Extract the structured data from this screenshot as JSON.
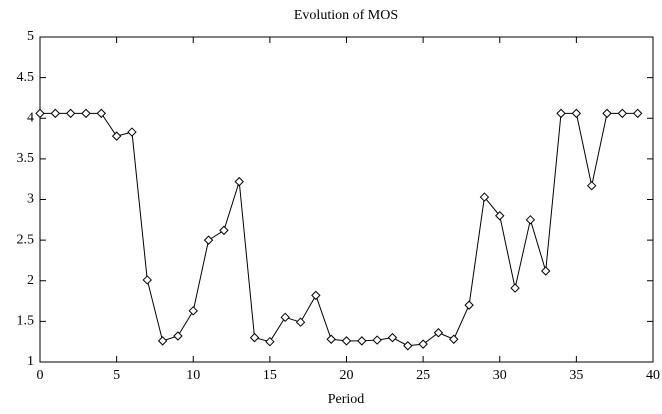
{
  "chart_data": {
    "type": "line",
    "title": "Evolution of MOS",
    "x_label": "Period",
    "x": [
      0,
      1,
      2,
      3,
      4,
      5,
      6,
      7,
      8,
      9,
      10,
      11,
      12,
      13,
      14,
      15,
      16,
      17,
      18,
      19,
      20,
      21,
      22,
      23,
      24,
      25,
      26,
      27,
      28,
      29,
      30,
      31,
      32,
      33,
      34,
      35,
      36,
      37,
      38,
      39
    ],
    "series": [
      {
        "color": "#000000",
        "values": [
          4.06,
          4.06,
          4.06,
          4.06,
          4.06,
          3.78,
          3.83,
          2.01,
          1.26,
          1.32,
          1.63,
          2.5,
          2.62,
          3.22,
          1.3,
          1.25,
          1.55,
          1.49,
          1.82,
          1.28,
          1.26,
          1.26,
          1.27,
          1.3,
          1.2,
          1.22,
          1.36,
          1.28,
          1.7,
          3.03,
          2.8,
          1.91,
          2.75,
          2.12,
          4.06,
          4.06,
          3.17,
          4.06,
          4.06,
          4.06
        ]
      }
    ],
    "xlim": [
      0,
      40
    ],
    "xticks": [
      0,
      5,
      10,
      15,
      20,
      25,
      30,
      35,
      40
    ],
    "ylim": [
      1,
      5
    ],
    "yticks": [
      1,
      1.5,
      2,
      2.5,
      3,
      3.5,
      4,
      4.5,
      5
    ],
    "grid": false
  }
}
